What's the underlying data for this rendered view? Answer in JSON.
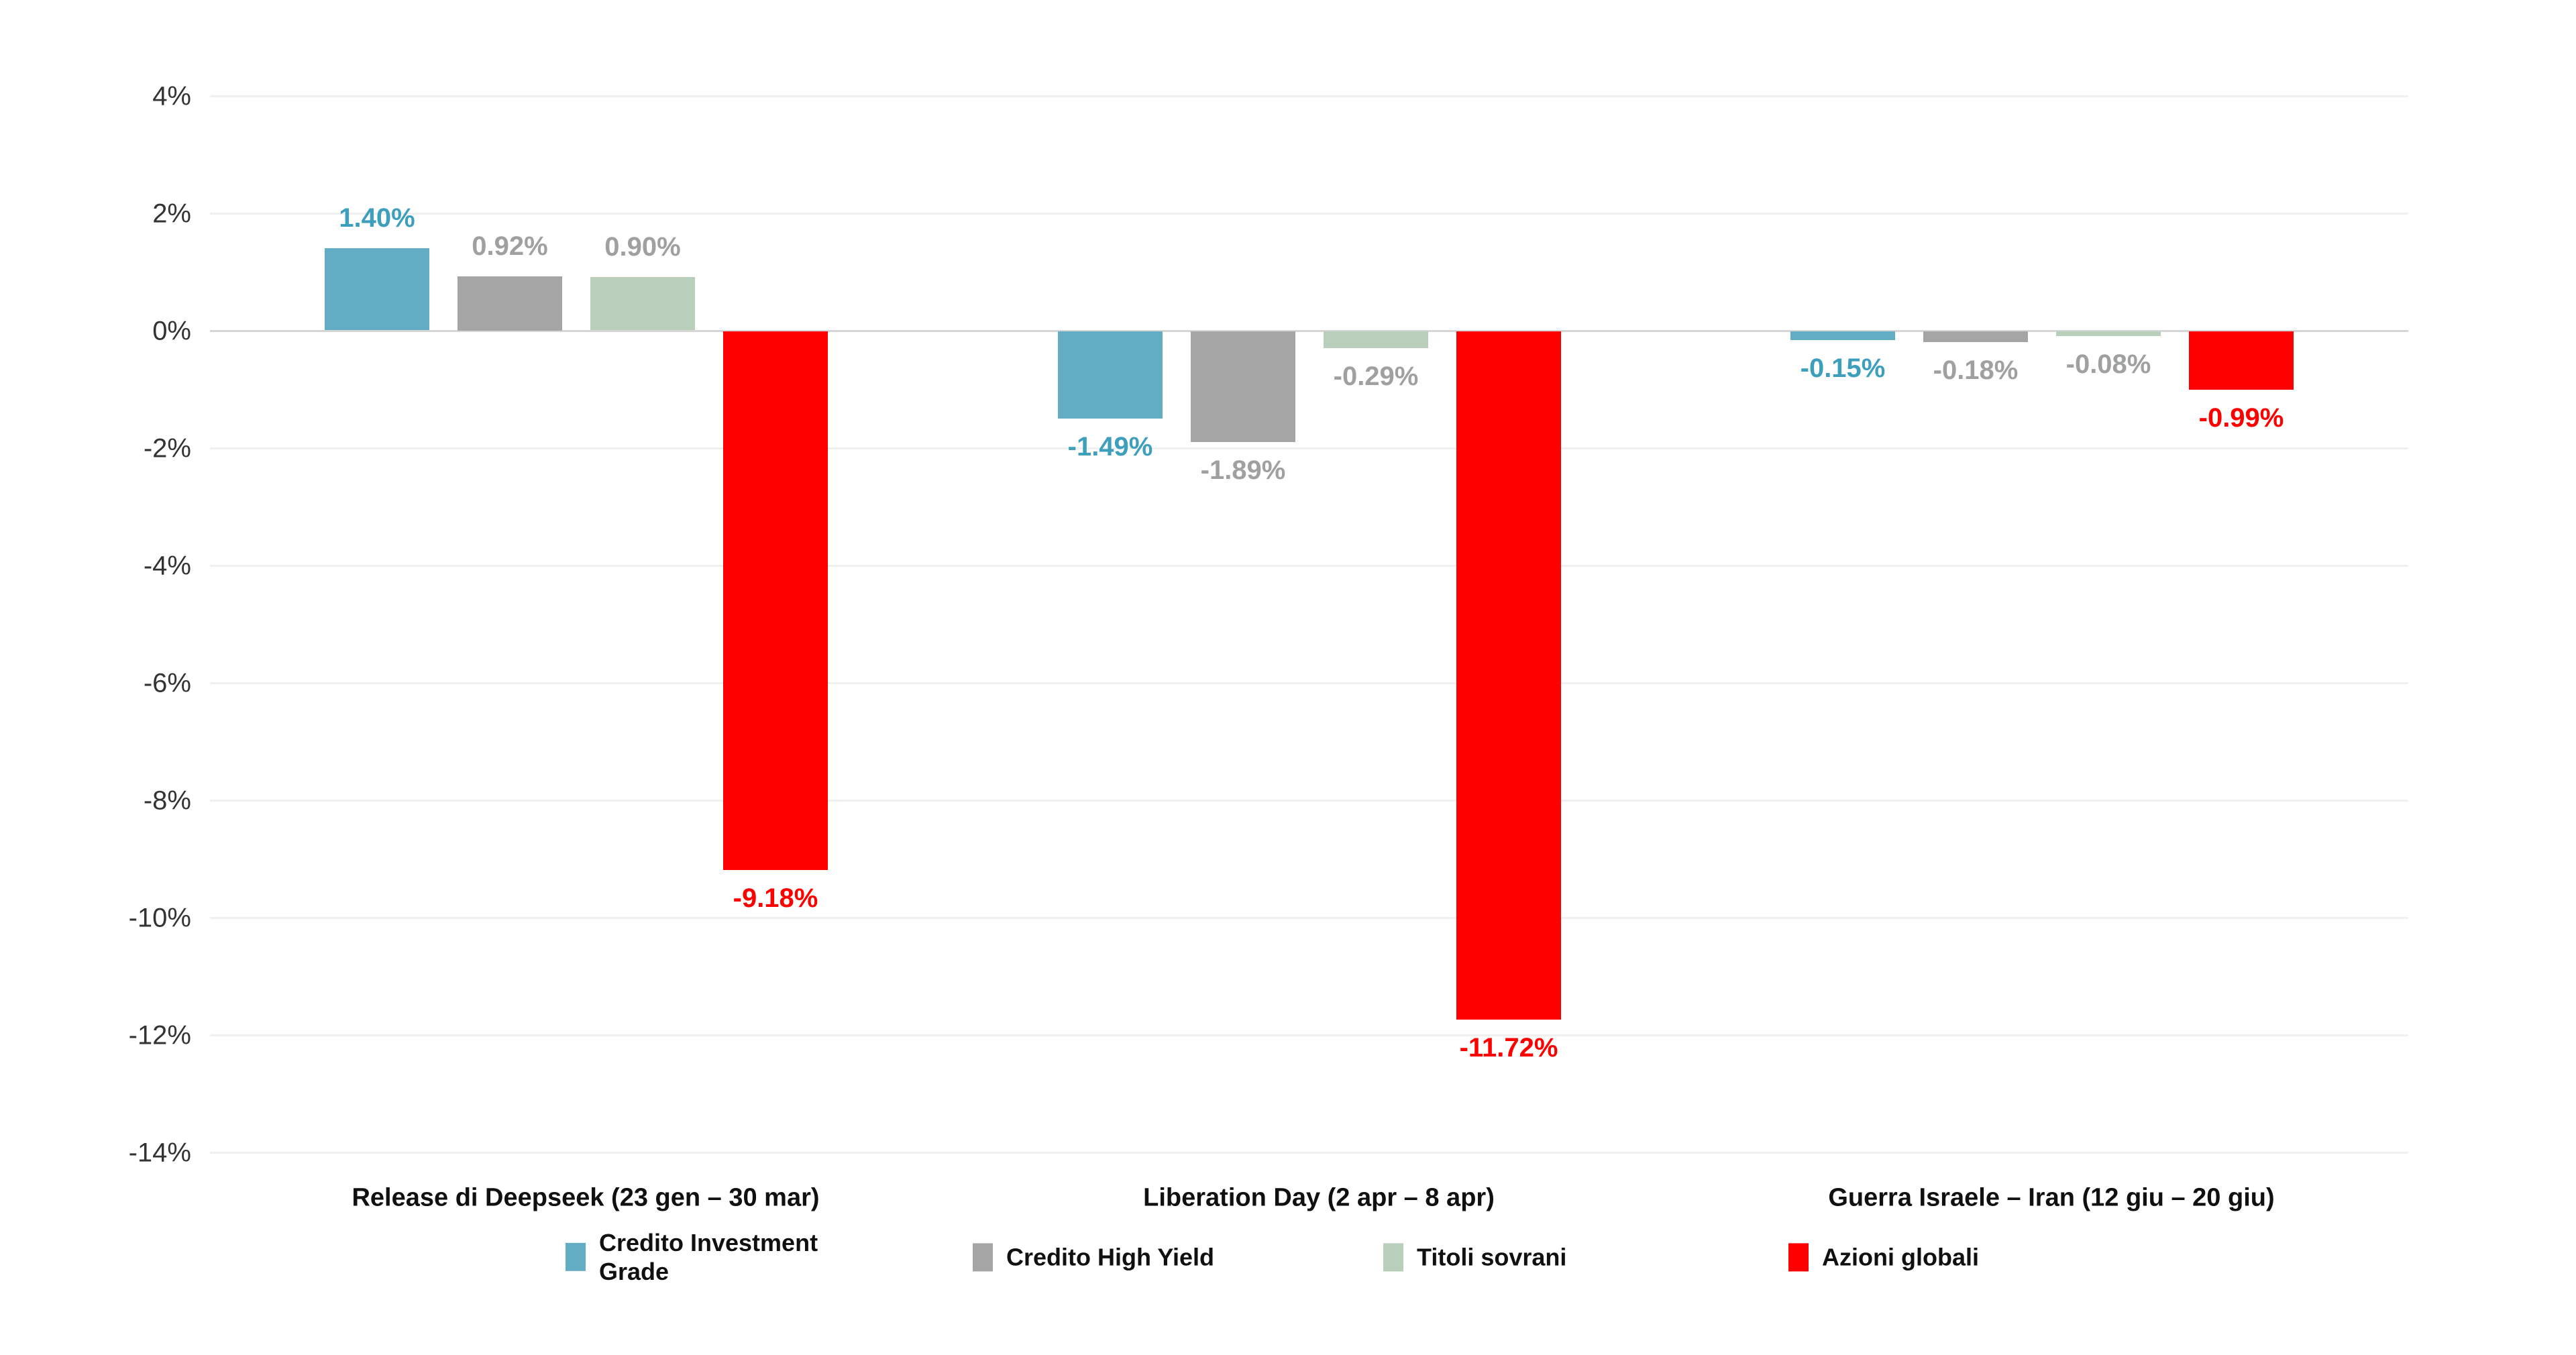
{
  "chart_data": {
    "type": "bar",
    "title": "",
    "xlabel": "",
    "ylabel": "",
    "categories": [
      "Release di Deepseek (23 gen – 30 mar)",
      "Liberation Day (2 apr – 8 apr)",
      "Guerra Israele – Iran (12 giu – 20 giu)"
    ],
    "series": [
      {
        "name": "Credito Investment Grade",
        "color": "#62ADC3",
        "label_color": "#3E9FBD",
        "values": [
          1.4,
          -1.49,
          -0.15
        ],
        "labels": [
          "1.40%",
          "-1.49%",
          "-0.15%"
        ]
      },
      {
        "name": "Credito High Yield",
        "color": "#A5A5A5",
        "label_color": "#9FA0A0",
        "values": [
          0.92,
          -1.89,
          -0.18
        ],
        "labels": [
          "0.92%",
          "-1.89%",
          "-0.18%"
        ]
      },
      {
        "name": "Titoli sovrani",
        "color": "#B9CEBB",
        "label_color": "#9FA0A0",
        "values": [
          0.9,
          -0.29,
          -0.08
        ],
        "labels": [
          "0.90%",
          "-0.29%",
          "-0.08%"
        ]
      },
      {
        "name": "Azioni globali",
        "color": "#FE0000",
        "label_color": "#FE0000",
        "values": [
          -9.18,
          -11.72,
          -0.99
        ],
        "labels": [
          "-9.18%",
          "-11.72%",
          "-0.99%"
        ]
      }
    ],
    "y_axis": {
      "tick_labels": [
        "4%",
        "2%",
        "0%",
        "-2%",
        "-4%",
        "-6%",
        "-8%",
        "-10%",
        "-12%",
        "-14%"
      ],
      "tick_values": [
        4,
        2,
        0,
        -2,
        -4,
        -6,
        -8,
        -10,
        -12,
        -14
      ],
      "ylim": [
        -14,
        4
      ],
      "grid": true
    },
    "legend": {
      "position": "bottom",
      "entries": [
        "Credito Investment Grade",
        "Credito High Yield",
        "Titoli sovrani",
        "Azioni globali"
      ]
    },
    "colors": {
      "background": "#FFFFFF",
      "grid_line": "#F0F0F0",
      "zero_line": "#D6D6D6",
      "tick_label": "#333333",
      "category_label": "#101010",
      "legend_label": "#101010"
    }
  }
}
